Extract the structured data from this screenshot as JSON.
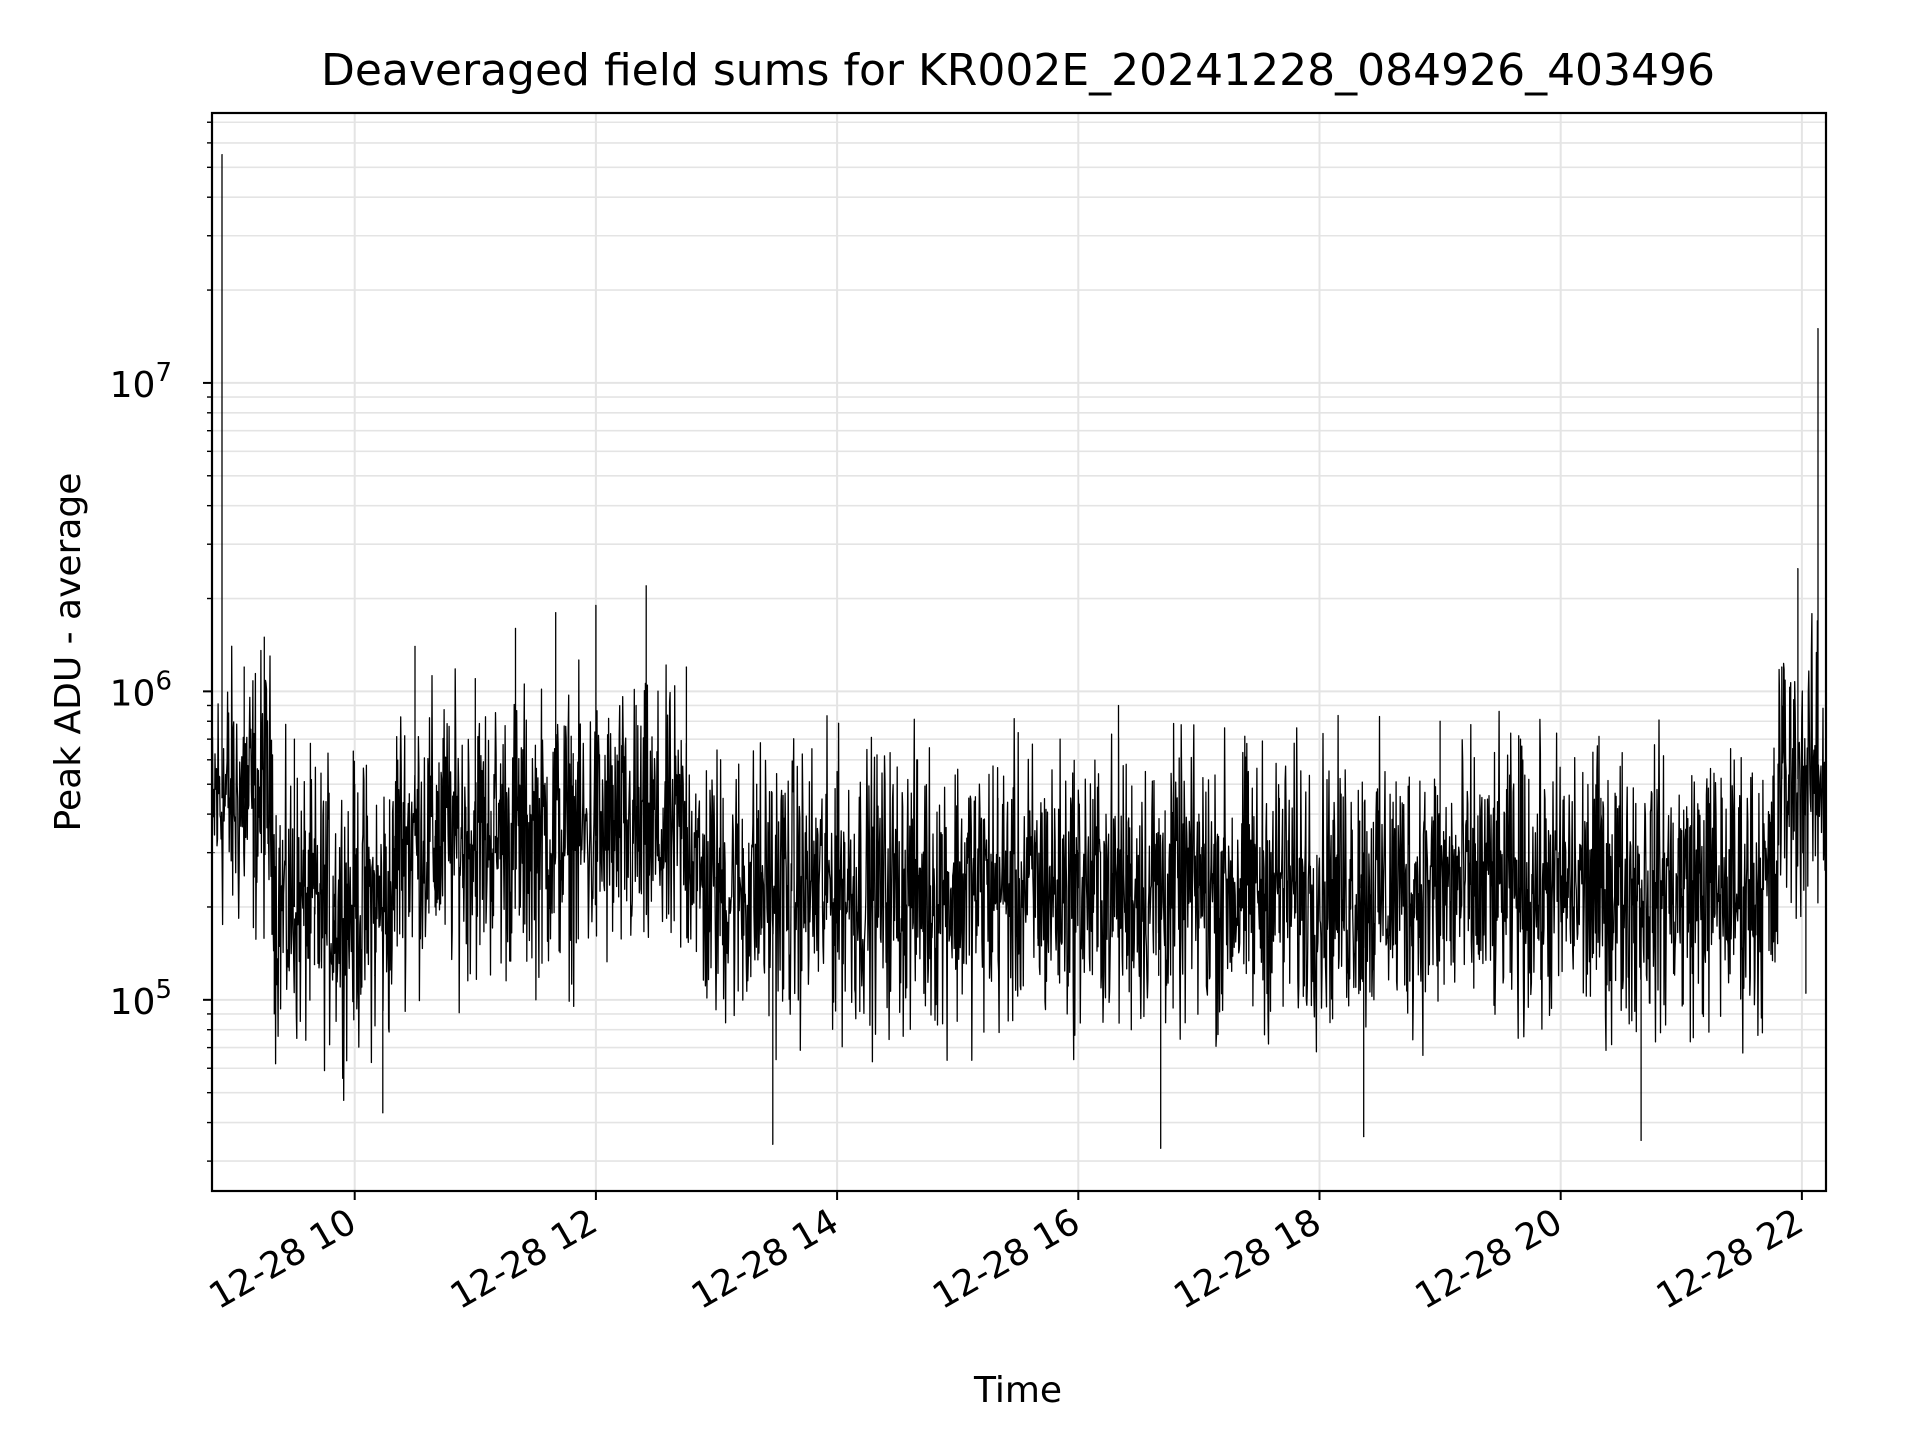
{
  "chart_data": {
    "type": "line",
    "title": "Deaveraged field sums for KR002E_20241228_084926_403496",
    "xlabel": "Time",
    "ylabel": "Peak ADU - average",
    "yscale": "log",
    "ylim": [
      24000,
      75000000
    ],
    "xlim": [
      "2024-12-28 08:49",
      "2024-12-28 22:12"
    ],
    "xticks": [
      {
        "value": "2024-12-28 10:00",
        "label": "12-28 10"
      },
      {
        "value": "2024-12-28 12:00",
        "label": "12-28 12"
      },
      {
        "value": "2024-12-28 14:00",
        "label": "12-28 14"
      },
      {
        "value": "2024-12-28 16:00",
        "label": "12-28 16"
      },
      {
        "value": "2024-12-28 18:00",
        "label": "12-28 18"
      },
      {
        "value": "2024-12-28 20:00",
        "label": "12-28 20"
      },
      {
        "value": "2024-12-28 22:00",
        "label": "12-28 22"
      }
    ],
    "yticks": [
      {
        "value": 100000,
        "base": "10",
        "exp": "5"
      },
      {
        "value": 1000000,
        "base": "10",
        "exp": "6"
      },
      {
        "value": 10000000,
        "base": "10",
        "exp": "7"
      }
    ],
    "grid": true,
    "series": [
      {
        "color": "#000000",
        "note_points": "representative envelope readings (time, value)",
        "points": [
          [
            "2024-12-28 08:50",
            300000
          ],
          [
            "2024-12-28 08:54",
            55000000
          ],
          [
            "2024-12-28 08:58",
            400000
          ],
          [
            "2024-12-28 09:05",
            1200000
          ],
          [
            "2024-12-28 09:10",
            250000
          ],
          [
            "2024-12-28 09:15",
            1500000
          ],
          [
            "2024-12-28 09:20",
            90000
          ],
          [
            "2024-12-28 09:30",
            700000
          ],
          [
            "2024-12-28 09:40",
            130000
          ],
          [
            "2024-12-28 09:50",
            220000
          ],
          [
            "2024-12-28 10:00",
            500000
          ],
          [
            "2024-12-28 10:10",
            120000
          ],
          [
            "2024-12-28 10:14",
            43000
          ],
          [
            "2024-12-28 10:20",
            300000
          ],
          [
            "2024-12-28 10:30",
            1400000
          ],
          [
            "2024-12-28 10:40",
            200000
          ],
          [
            "2024-12-28 10:50",
            600000
          ],
          [
            "2024-12-28 11:00",
            1100000
          ],
          [
            "2024-12-28 11:10",
            300000
          ],
          [
            "2024-12-28 11:20",
            1600000
          ],
          [
            "2024-12-28 11:30",
            200000
          ],
          [
            "2024-12-28 11:40",
            1800000
          ],
          [
            "2024-12-28 11:50",
            400000
          ],
          [
            "2024-12-28 12:00",
            1900000
          ],
          [
            "2024-12-28 12:10",
            350000
          ],
          [
            "2024-12-28 12:20",
            900000
          ],
          [
            "2024-12-28 12:25",
            2200000
          ],
          [
            "2024-12-28 12:35",
            300000
          ],
          [
            "2024-12-28 12:45",
            1200000
          ],
          [
            "2024-12-28 13:00",
            250000
          ],
          [
            "2024-12-28 13:20",
            500000
          ],
          [
            "2024-12-28 13:28",
            34000
          ],
          [
            "2024-12-28 13:40",
            200000
          ],
          [
            "2024-12-28 14:00",
            550000
          ],
          [
            "2024-12-28 14:20",
            180000
          ],
          [
            "2024-12-28 14:40",
            600000
          ],
          [
            "2024-12-28 15:00",
            220000
          ],
          [
            "2024-12-28 15:20",
            450000
          ],
          [
            "2024-12-28 15:40",
            150000
          ],
          [
            "2024-12-28 16:00",
            300000
          ],
          [
            "2024-12-28 16:20",
            900000
          ],
          [
            "2024-12-28 16:40",
            120000
          ],
          [
            "2024-12-28 16:41",
            33000
          ],
          [
            "2024-12-28 17:00",
            400000
          ],
          [
            "2024-12-28 17:20",
            200000
          ],
          [
            "2024-12-28 17:40",
            450000
          ],
          [
            "2024-12-28 18:00",
            220000
          ],
          [
            "2024-12-28 18:20",
            380000
          ],
          [
            "2024-12-28 18:22",
            36000
          ],
          [
            "2024-12-28 18:40",
            300000
          ],
          [
            "2024-12-28 19:00",
            800000
          ],
          [
            "2024-12-28 19:20",
            200000
          ],
          [
            "2024-12-28 19:40",
            700000
          ],
          [
            "2024-12-28 20:00",
            250000
          ],
          [
            "2024-12-28 20:20",
            450000
          ],
          [
            "2024-12-28 20:40",
            35000
          ],
          [
            "2024-12-28 21:00",
            200000
          ],
          [
            "2024-12-28 21:20",
            400000
          ],
          [
            "2024-12-28 21:40",
            180000
          ],
          [
            "2024-12-28 21:50",
            1200000
          ],
          [
            "2024-12-28 21:58",
            2500000
          ],
          [
            "2024-12-28 22:02",
            105000
          ],
          [
            "2024-12-28 22:06",
            600000
          ],
          [
            "2024-12-28 22:08",
            15000000
          ],
          [
            "2024-12-28 22:11",
            400000
          ]
        ]
      }
    ]
  }
}
